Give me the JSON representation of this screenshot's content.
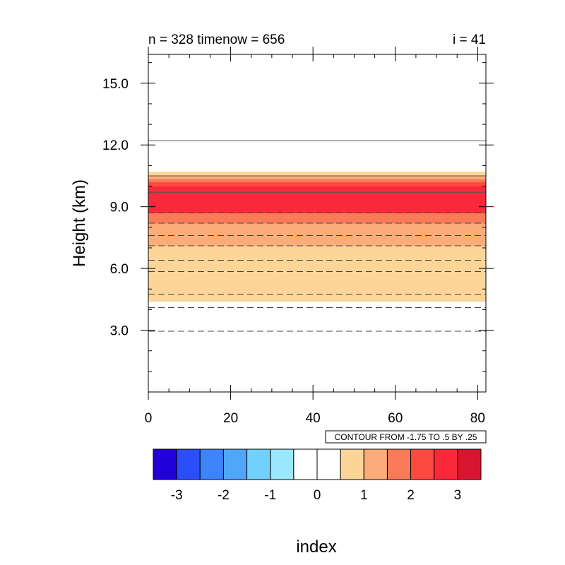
{
  "chart_data": {
    "type": "contour",
    "title_left": "n = 328 timenow = 656",
    "title_right": "i = 41",
    "xlabel": "index",
    "ylabel": "Height (km)",
    "xlim": [
      0,
      82
    ],
    "ylim": [
      0,
      16.4
    ],
    "x_ticks": [
      "0",
      "20",
      "40",
      "60",
      "80"
    ],
    "x_tick_values": [
      0,
      20,
      40,
      60,
      80
    ],
    "y_ticks": [
      "3.0",
      "6.0",
      "9.0",
      "12.0",
      "15.0"
    ],
    "y_tick_values": [
      3,
      6,
      9,
      12,
      15
    ],
    "contour_info": "CONTOUR FROM -1.75 TO .5 BY .25",
    "filled_bands": [
      {
        "y0": 4.4,
        "y1": 7.1,
        "color": "#fdd598"
      },
      {
        "y0": 7.1,
        "y1": 8.2,
        "color": "#fcac78"
      },
      {
        "y0": 8.2,
        "y1": 8.7,
        "color": "#fb7a58"
      },
      {
        "y0": 8.7,
        "y1": 9.7,
        "color": "#f9283a"
      },
      {
        "y0": 9.7,
        "y1": 10.0,
        "color": "#f9283a"
      },
      {
        "y0": 10.0,
        "y1": 10.2,
        "color": "#fb4a40"
      },
      {
        "y0": 10.2,
        "y1": 10.35,
        "color": "#fb7a58"
      },
      {
        "y0": 10.35,
        "y1": 10.5,
        "color": "#fcac78"
      },
      {
        "y0": 10.5,
        "y1": 10.7,
        "color": "#fdd598"
      }
    ],
    "contour_lines": [
      {
        "y": 12.2,
        "style": "solid"
      },
      {
        "y": 10.5,
        "style": "solid"
      },
      {
        "y": 9.7,
        "style": "solid"
      },
      {
        "y": 8.7,
        "style": "dashed"
      },
      {
        "y": 8.2,
        "style": "dashed"
      },
      {
        "y": 7.6,
        "style": "dashed"
      },
      {
        "y": 7.1,
        "style": "dashed"
      },
      {
        "y": 6.4,
        "style": "dashed"
      },
      {
        "y": 5.85,
        "style": "dashed"
      },
      {
        "y": 4.75,
        "style": "dashed"
      },
      {
        "y": 4.1,
        "style": "dashed"
      },
      {
        "y": 2.95,
        "style": "dashed"
      }
    ],
    "colorbar": {
      "colors": [
        "#2200d9",
        "#2a4ef9",
        "#3b84fa",
        "#4fa6fb",
        "#71d1fc",
        "#9ae8fd",
        "#ffffff",
        "#ffffff",
        "#fdd598",
        "#fcac78",
        "#fb7a58",
        "#fb4a40",
        "#f9283a",
        "#d8152f"
      ],
      "labels": [
        "-3",
        "-2",
        "-1",
        "0",
        "1",
        "2",
        "3"
      ]
    }
  }
}
